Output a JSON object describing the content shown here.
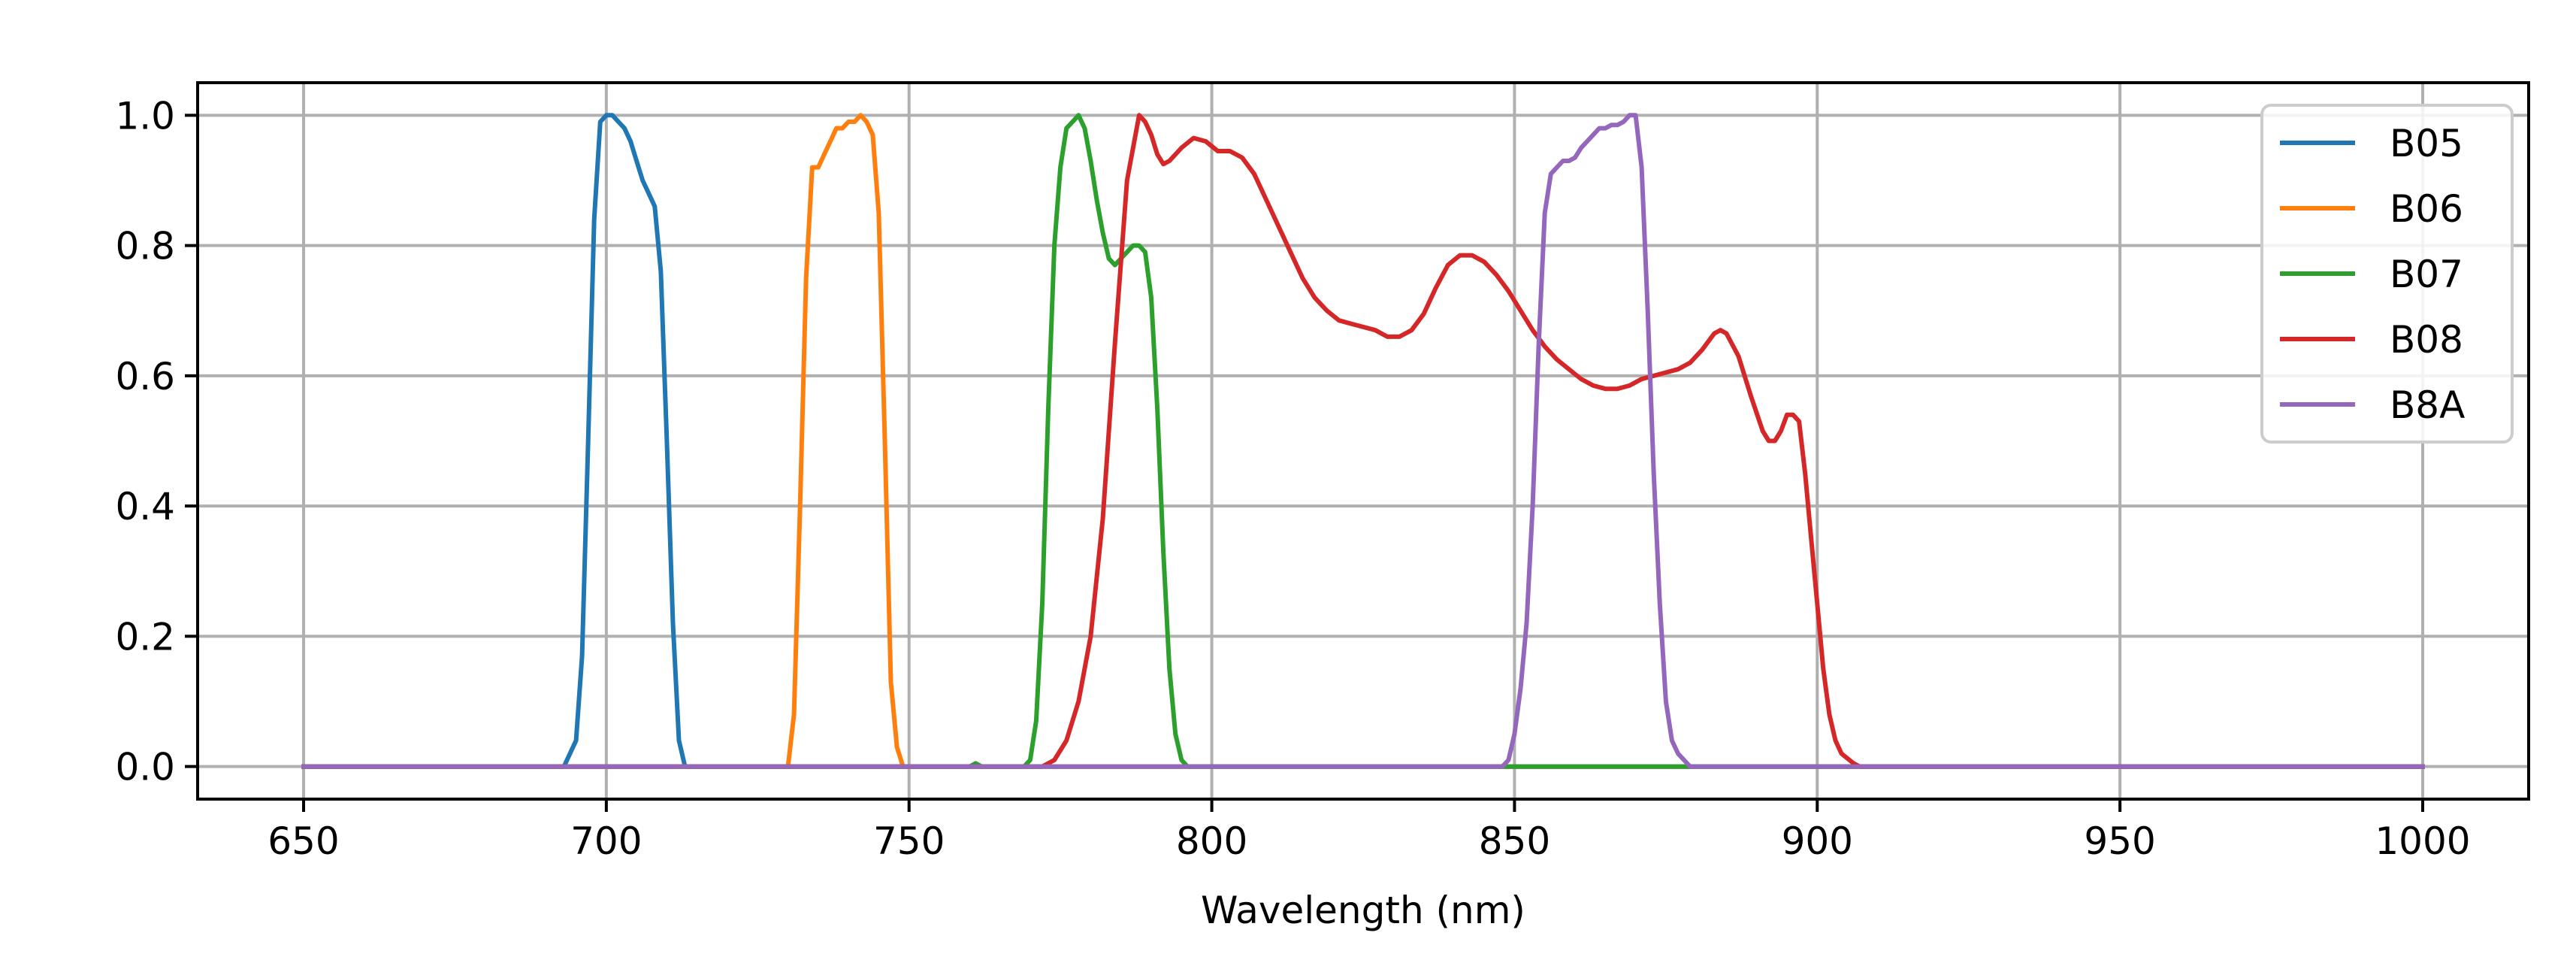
{
  "chart_data": {
    "type": "line",
    "title": "",
    "xlabel": "Wavelength (nm)",
    "ylabel": "",
    "xlim": [
      632.5,
      1017.5
    ],
    "ylim": [
      -0.05,
      1.05
    ],
    "xticks": [
      650,
      700,
      750,
      800,
      850,
      900,
      950,
      1000
    ],
    "yticks": [
      0.0,
      0.2,
      0.4,
      0.6,
      0.8,
      1.0
    ],
    "xtick_labels": [
      "650",
      "700",
      "750",
      "800",
      "850",
      "900",
      "950",
      "1000"
    ],
    "ytick_labels": [
      "0.0",
      "0.2",
      "0.4",
      "0.6",
      "0.8",
      "1.0"
    ],
    "grid": true,
    "legend_position": "top-right",
    "series": [
      {
        "name": "B05",
        "color": "#1f77b4",
        "points": [
          [
            650,
            0
          ],
          [
            693,
            0
          ],
          [
            695,
            0.04
          ],
          [
            696,
            0.17
          ],
          [
            697,
            0.5
          ],
          [
            698,
            0.84
          ],
          [
            699,
            0.99
          ],
          [
            700,
            1.0
          ],
          [
            701,
            1.0
          ],
          [
            702,
            0.99
          ],
          [
            703,
            0.98
          ],
          [
            704,
            0.96
          ],
          [
            705,
            0.93
          ],
          [
            706,
            0.9
          ],
          [
            707,
            0.88
          ],
          [
            708,
            0.86
          ],
          [
            709,
            0.76
          ],
          [
            710,
            0.5
          ],
          [
            711,
            0.22
          ],
          [
            712,
            0.04
          ],
          [
            713,
            0.0
          ],
          [
            1000,
            0
          ]
        ]
      },
      {
        "name": "B06",
        "color": "#ff7f0e",
        "points": [
          [
            650,
            0
          ],
          [
            730,
            0
          ],
          [
            731,
            0.08
          ],
          [
            732,
            0.4
          ],
          [
            733,
            0.75
          ],
          [
            734,
            0.92
          ],
          [
            735,
            0.92
          ],
          [
            736,
            0.94
          ],
          [
            737,
            0.96
          ],
          [
            738,
            0.98
          ],
          [
            739,
            0.98
          ],
          [
            740,
            0.99
          ],
          [
            741,
            0.99
          ],
          [
            742,
            1.0
          ],
          [
            743,
            0.99
          ],
          [
            744,
            0.97
          ],
          [
            745,
            0.85
          ],
          [
            746,
            0.5
          ],
          [
            747,
            0.13
          ],
          [
            748,
            0.03
          ],
          [
            749,
            0.0
          ],
          [
            1000,
            0
          ]
        ]
      },
      {
        "name": "B07",
        "color": "#2ca02c",
        "points": [
          [
            650,
            0
          ],
          [
            760,
            0
          ],
          [
            761,
            0.005
          ],
          [
            762,
            0.0
          ],
          [
            769,
            0.0
          ],
          [
            770,
            0.01
          ],
          [
            771,
            0.07
          ],
          [
            772,
            0.25
          ],
          [
            773,
            0.55
          ],
          [
            774,
            0.8
          ],
          [
            775,
            0.92
          ],
          [
            776,
            0.98
          ],
          [
            777,
            0.99
          ],
          [
            778,
            1.0
          ],
          [
            779,
            0.98
          ],
          [
            780,
            0.93
          ],
          [
            781,
            0.87
          ],
          [
            782,
            0.82
          ],
          [
            783,
            0.78
          ],
          [
            784,
            0.77
          ],
          [
            785,
            0.78
          ],
          [
            786,
            0.79
          ],
          [
            787,
            0.8
          ],
          [
            788,
            0.8
          ],
          [
            789,
            0.79
          ],
          [
            790,
            0.72
          ],
          [
            791,
            0.55
          ],
          [
            792,
            0.33
          ],
          [
            793,
            0.15
          ],
          [
            794,
            0.05
          ],
          [
            795,
            0.01
          ],
          [
            796,
            0.0
          ],
          [
            850,
            0
          ],
          [
            880,
            0
          ],
          [
            1000,
            0
          ]
        ]
      },
      {
        "name": "B08",
        "color": "#d62728",
        "points": [
          [
            650,
            0
          ],
          [
            772,
            0
          ],
          [
            774,
            0.01
          ],
          [
            776,
            0.04
          ],
          [
            778,
            0.1
          ],
          [
            780,
            0.2
          ],
          [
            782,
            0.38
          ],
          [
            784,
            0.65
          ],
          [
            786,
            0.9
          ],
          [
            788,
            1.0
          ],
          [
            789,
            0.99
          ],
          [
            790,
            0.97
          ],
          [
            791,
            0.94
          ],
          [
            792,
            0.925
          ],
          [
            793,
            0.93
          ],
          [
            795,
            0.95
          ],
          [
            797,
            0.965
          ],
          [
            799,
            0.96
          ],
          [
            801,
            0.945
          ],
          [
            803,
            0.945
          ],
          [
            805,
            0.935
          ],
          [
            807,
            0.91
          ],
          [
            809,
            0.87
          ],
          [
            811,
            0.83
          ],
          [
            813,
            0.79
          ],
          [
            815,
            0.75
          ],
          [
            817,
            0.72
          ],
          [
            819,
            0.7
          ],
          [
            821,
            0.685
          ],
          [
            823,
            0.68
          ],
          [
            825,
            0.675
          ],
          [
            827,
            0.67
          ],
          [
            829,
            0.66
          ],
          [
            831,
            0.66
          ],
          [
            833,
            0.67
          ],
          [
            835,
            0.695
          ],
          [
            837,
            0.735
          ],
          [
            839,
            0.77
          ],
          [
            841,
            0.785
          ],
          [
            843,
            0.785
          ],
          [
            845,
            0.775
          ],
          [
            847,
            0.755
          ],
          [
            849,
            0.73
          ],
          [
            851,
            0.7
          ],
          [
            853,
            0.67
          ],
          [
            855,
            0.645
          ],
          [
            857,
            0.625
          ],
          [
            859,
            0.61
          ],
          [
            861,
            0.595
          ],
          [
            863,
            0.585
          ],
          [
            865,
            0.58
          ],
          [
            867,
            0.58
          ],
          [
            869,
            0.585
          ],
          [
            871,
            0.595
          ],
          [
            873,
            0.6
          ],
          [
            875,
            0.605
          ],
          [
            877,
            0.61
          ],
          [
            879,
            0.62
          ],
          [
            881,
            0.64
          ],
          [
            883,
            0.665
          ],
          [
            884,
            0.67
          ],
          [
            885,
            0.665
          ],
          [
            887,
            0.63
          ],
          [
            889,
            0.57
          ],
          [
            891,
            0.515
          ],
          [
            892,
            0.5
          ],
          [
            893,
            0.5
          ],
          [
            894,
            0.515
          ],
          [
            895,
            0.54
          ],
          [
            896,
            0.54
          ],
          [
            897,
            0.53
          ],
          [
            898,
            0.45
          ],
          [
            899,
            0.35
          ],
          [
            900,
            0.25
          ],
          [
            901,
            0.15
          ],
          [
            902,
            0.08
          ],
          [
            903,
            0.04
          ],
          [
            904,
            0.02
          ],
          [
            906,
            0.005
          ],
          [
            907,
            0.0
          ],
          [
            1000,
            0
          ]
        ]
      },
      {
        "name": "B8A",
        "color": "#9467bd",
        "points": [
          [
            650,
            0
          ],
          [
            848,
            0
          ],
          [
            849,
            0.01
          ],
          [
            850,
            0.05
          ],
          [
            851,
            0.12
          ],
          [
            852,
            0.22
          ],
          [
            853,
            0.4
          ],
          [
            854,
            0.65
          ],
          [
            855,
            0.85
          ],
          [
            856,
            0.91
          ],
          [
            857,
            0.92
          ],
          [
            858,
            0.93
          ],
          [
            859,
            0.93
          ],
          [
            860,
            0.935
          ],
          [
            861,
            0.95
          ],
          [
            862,
            0.96
          ],
          [
            863,
            0.97
          ],
          [
            864,
            0.98
          ],
          [
            865,
            0.98
          ],
          [
            866,
            0.985
          ],
          [
            867,
            0.985
          ],
          [
            868,
            0.99
          ],
          [
            869,
            1.0
          ],
          [
            870,
            1.0
          ],
          [
            871,
            0.92
          ],
          [
            872,
            0.7
          ],
          [
            873,
            0.45
          ],
          [
            874,
            0.25
          ],
          [
            875,
            0.1
          ],
          [
            876,
            0.04
          ],
          [
            877,
            0.02
          ],
          [
            878,
            0.01
          ],
          [
            879,
            0.0
          ],
          [
            1000,
            0
          ]
        ]
      }
    ]
  }
}
